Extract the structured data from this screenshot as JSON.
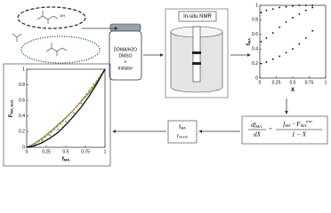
{
  "diagram": {
    "vial": {
      "solvent": "DDMA/H2O",
      "cosolvent": "DMSO",
      "plus": "+",
      "initiator": "Initiator"
    },
    "nmr_label": "In-situ NMR",
    "equation": {
      "lhs_num": "df",
      "lhs_num_sub": "MA",
      "lhs_den": "dX",
      "equals": "=",
      "rhs_f": "f",
      "rhs_f_sub": "MA",
      "minus": "−",
      "rhs_F": "F",
      "rhs_F_sub": "MA",
      "rhs_F_sup": "inst.",
      "rhs_den": "1 − X"
    },
    "output_box": {
      "line1": "f",
      "line1_sub": "MA",
      "line2": "r",
      "line2_sub": "mon2"
    }
  },
  "chart_data": [
    {
      "type": "scatter",
      "x_label": "X",
      "y_label": "f",
      "y_label_sub": "MA",
      "x": [
        0.02,
        0.1,
        0.2,
        0.3,
        0.4,
        0.5,
        0.6,
        0.7,
        0.8
      ],
      "series": [
        {
          "color": "#000000",
          "values": [
            0.9,
            0.93,
            0.95,
            0.97,
            0.98,
            0.99,
            1,
            1,
            1
          ]
        },
        {
          "color": "#000000",
          "values": [
            0.5,
            0.55,
            0.62,
            0.7,
            0.77,
            0.83,
            0.88,
            0.93,
            0.97
          ]
        },
        {
          "color": "#000000",
          "values": [
            0.2,
            0.22,
            0.26,
            0.3,
            0.35,
            0.4,
            0.47,
            0.55,
            0.65
          ]
        }
      ],
      "xlim": [
        0,
        1
      ],
      "ylim": [
        0,
        1
      ],
      "xticks": [
        0,
        0.25,
        0.5,
        0.75,
        1
      ],
      "yticks": [
        0,
        0.2,
        0.4,
        0.6,
        0.8,
        1
      ]
    },
    {
      "type": "line",
      "x_label": "f",
      "x_label_sub": "MA",
      "y_label": "F",
      "y_label_sub": "MA, inst.",
      "x": [
        0,
        0.1,
        0.2,
        0.3,
        0.4,
        0.5,
        0.6,
        0.7,
        0.8,
        0.9,
        1
      ],
      "series": [
        {
          "color": "#5aa02c",
          "style": "solid",
          "values": [
            0,
            0.05,
            0.12,
            0.2,
            0.29,
            0.38,
            0.48,
            0.59,
            0.7,
            0.84,
            1
          ]
        },
        {
          "color": "#e8702a",
          "style": "dashed",
          "values": [
            0,
            0.04,
            0.1,
            0.18,
            0.27,
            0.37,
            0.48,
            0.6,
            0.73,
            0.86,
            1
          ]
        },
        {
          "color": "#3fa0d8",
          "style": "markers",
          "values": [
            0,
            0.03,
            0.08,
            0.15,
            0.23,
            0.33,
            0.44,
            0.56,
            0.7,
            0.84,
            1
          ]
        },
        {
          "color": "#000000",
          "style": "solid",
          "values": [
            0,
            0.02,
            0.06,
            0.12,
            0.19,
            0.29,
            0.4,
            0.52,
            0.66,
            0.82,
            1
          ]
        }
      ],
      "xlim": [
        0,
        1
      ],
      "ylim": [
        0,
        1
      ],
      "xticks": [
        0,
        0.25,
        0.5,
        0.75,
        1
      ],
      "yticks": [
        0,
        0.2,
        0.4,
        0.6,
        0.8,
        1
      ]
    }
  ]
}
